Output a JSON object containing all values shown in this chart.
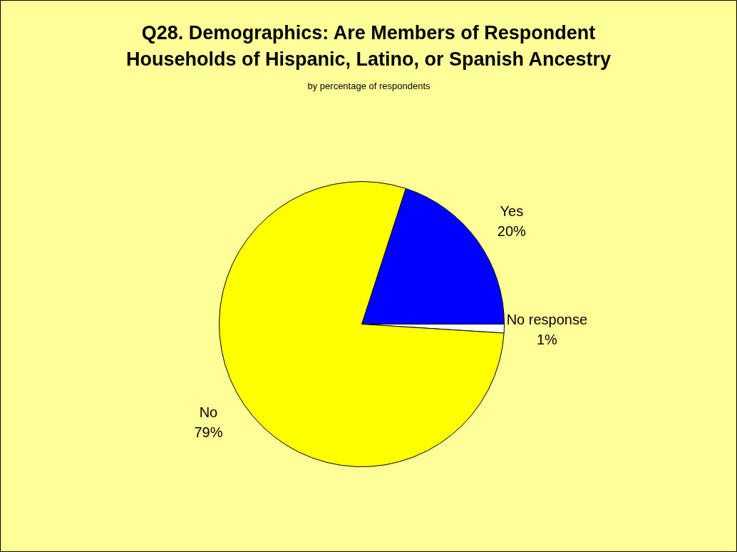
{
  "chart_data": {
    "type": "pie",
    "title": "Q28. Demographics: Are Members of Respondent Households of Hispanic, Latino, or Spanish Ancestry",
    "subtitle": "by percentage of respondents",
    "categories": [
      "Yes",
      "No response",
      "No"
    ],
    "values": [
      20,
      1,
      79
    ],
    "colors": [
      "#0000ff",
      "#ffffff",
      "#ffff00"
    ],
    "value_labels": [
      "20%",
      "1%",
      "79%"
    ]
  }
}
